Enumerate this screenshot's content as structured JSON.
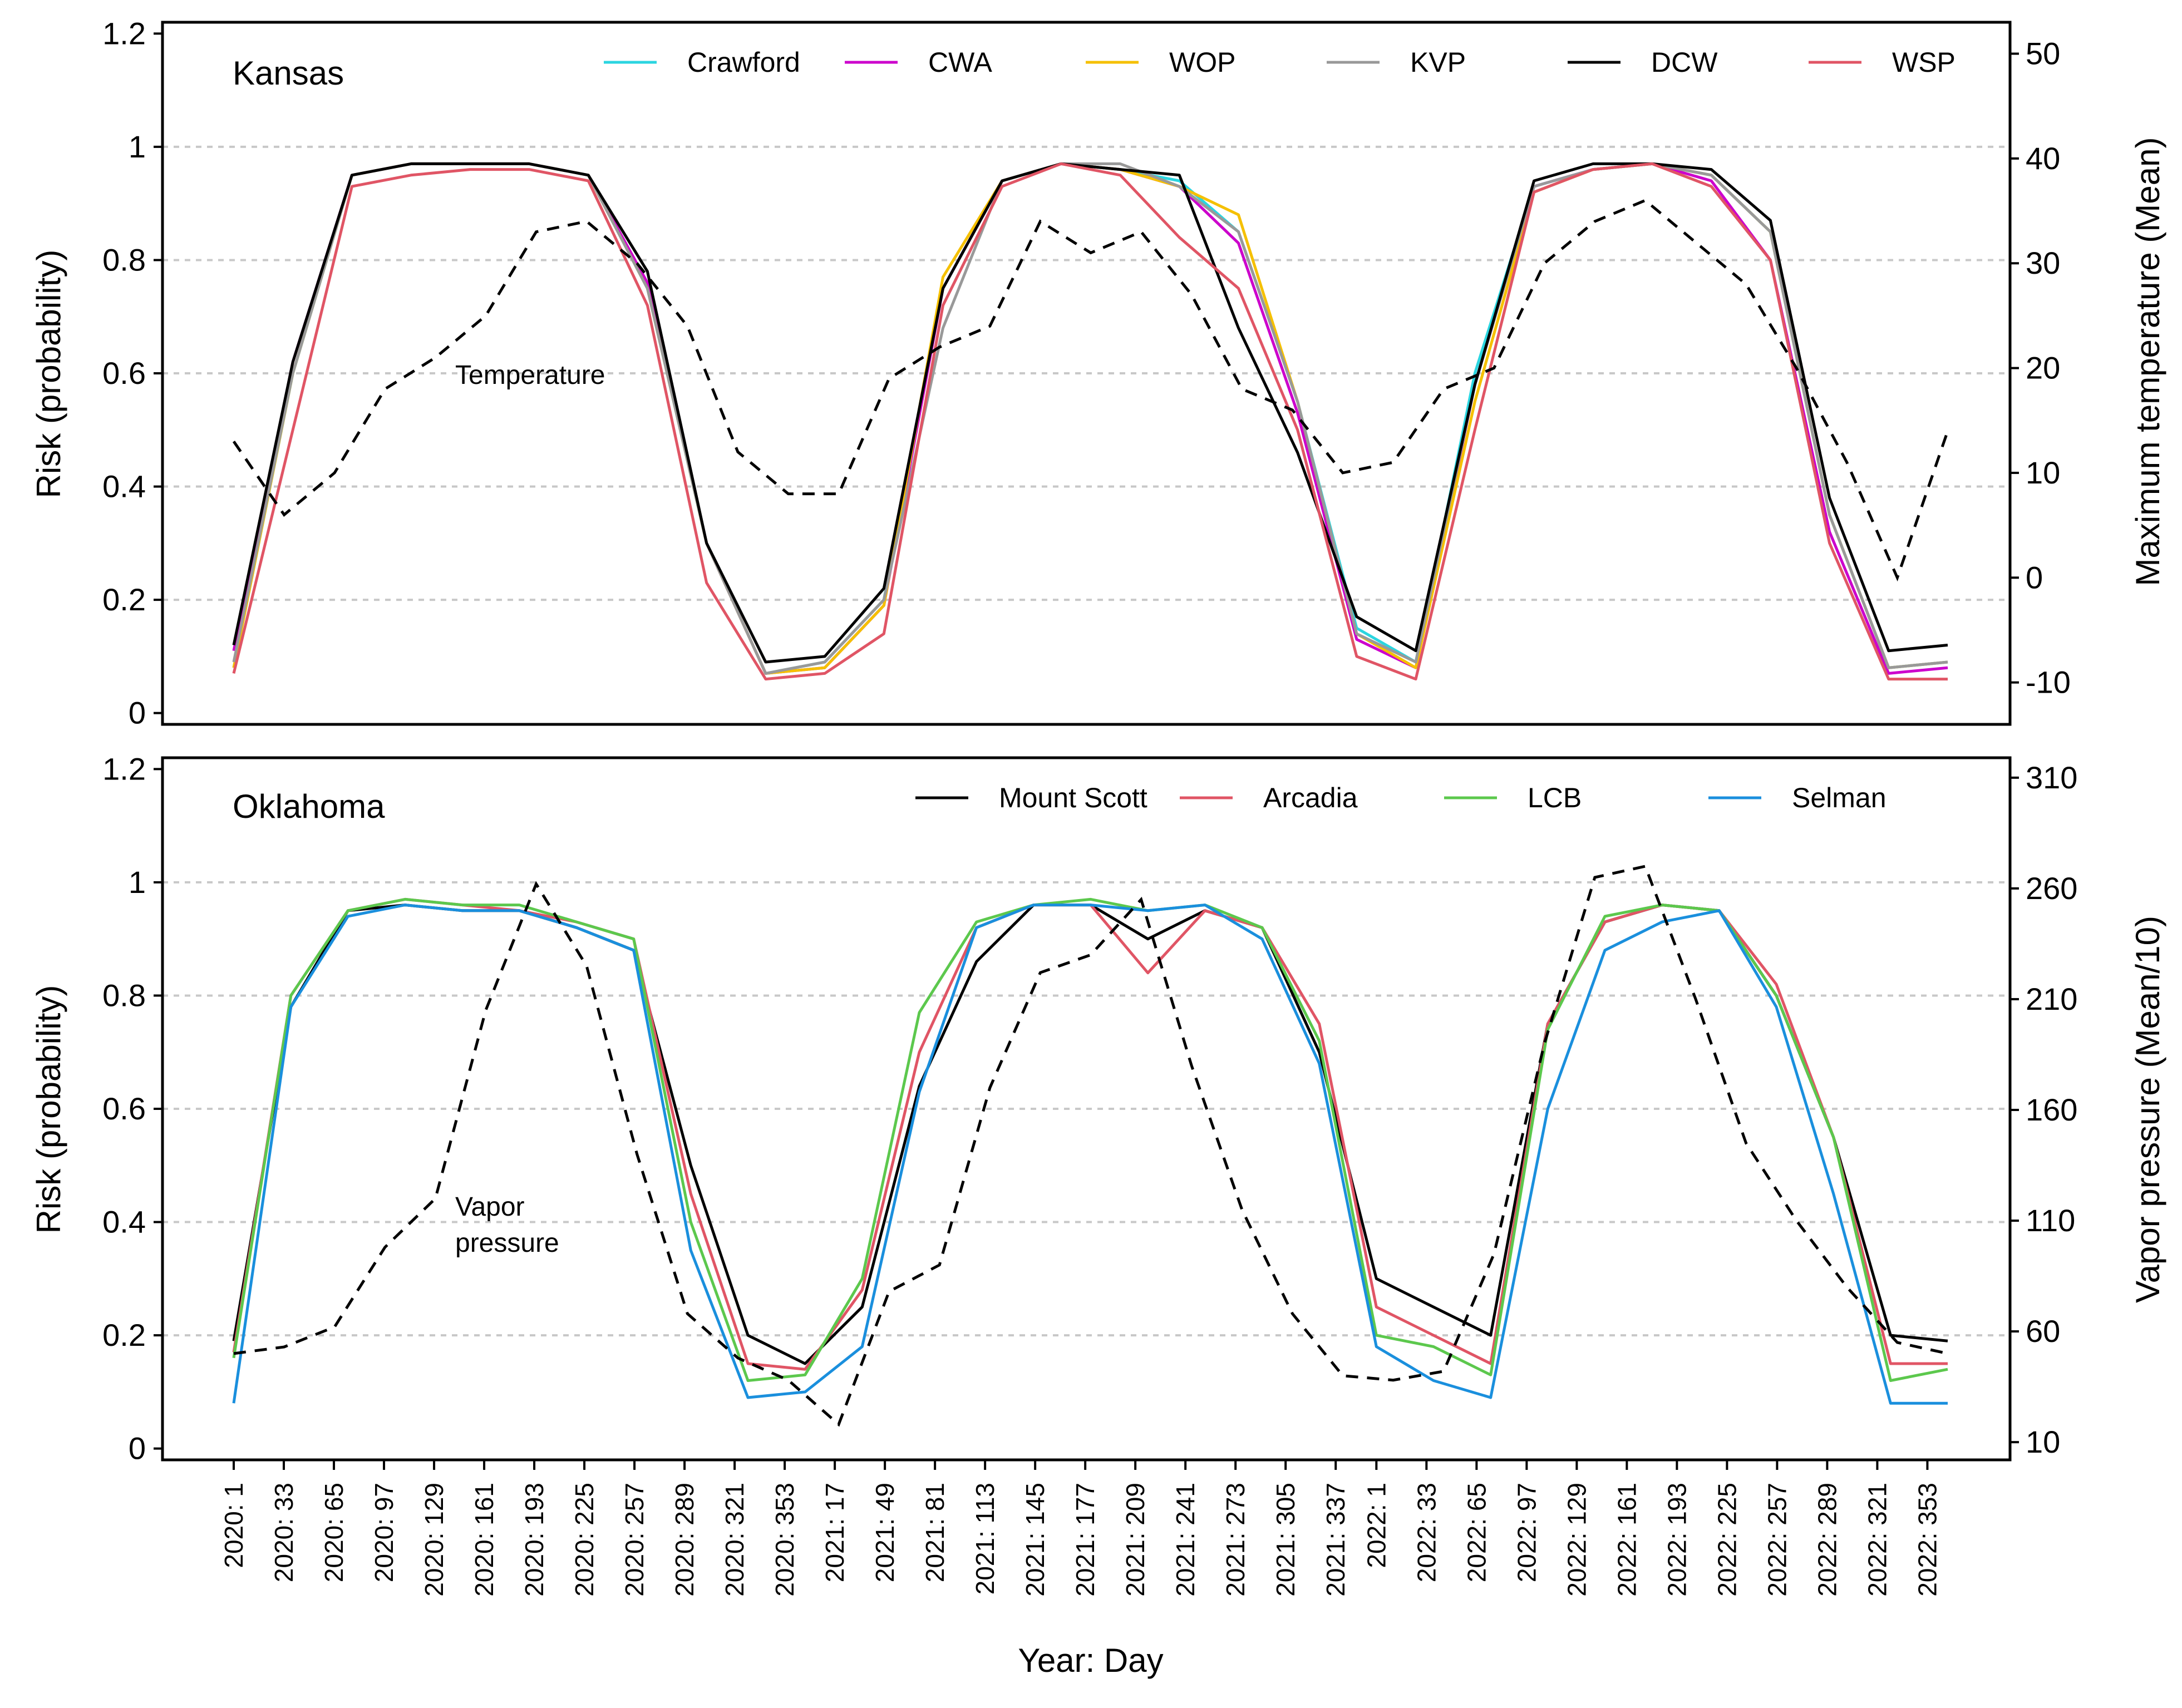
{
  "xlabel": "Year: Day",
  "x_tick_labels": [
    "2020: 1",
    "2020: 33",
    "2020: 65",
    "2020: 97",
    "2020: 129",
    "2020: 161",
    "2020: 193",
    "2020: 225",
    "2020: 257",
    "2020: 289",
    "2020: 321",
    "2020: 353",
    "2021: 17",
    "2021: 49",
    "2021: 81",
    "2021: 113",
    "2021: 145",
    "2021: 177",
    "2021: 209",
    "2021: 241",
    "2021: 273",
    "2021: 305",
    "2021: 337",
    "2022: 1",
    "2022: 33",
    "2022: 65",
    "2022: 97",
    "2022: 129",
    "2022: 161",
    "2022: 193",
    "2022: 225",
    "2022: 257",
    "2022: 289",
    "2022: 321",
    "2022: 353"
  ],
  "chart_data": [
    {
      "type": "line",
      "panel_label": "Kansas",
      "ylabel": "Risk (probability)",
      "ylim": [
        -0.02,
        1.22
      ],
      "yticks": [
        0,
        0.2,
        0.4,
        0.6,
        0.8,
        1,
        1.2
      ],
      "y2label": "Maximum temperature (Mean)",
      "y2lim": [
        -14,
        53
      ],
      "y2ticks": [
        -10,
        0,
        10,
        20,
        30,
        40,
        50
      ],
      "grid": "horizontal dotted",
      "legend_position": "top",
      "annotation": "Temperature",
      "days": [
        1,
        33,
        65,
        97,
        129,
        161,
        193,
        225,
        257,
        289,
        321,
        353,
        385,
        417,
        449,
        481,
        513,
        545,
        577,
        609,
        641,
        673,
        705,
        731,
        763,
        795,
        827,
        859,
        891,
        923,
        955,
        987,
        1019,
        1051,
        1083,
        1096
      ],
      "series": [
        {
          "name": "Crawford",
          "color": "#2BD5E0",
          "values": [
            0.08,
            0.6,
            0.95,
            0.97,
            0.97,
            0.97,
            0.95,
            0.75,
            0.3,
            0.07,
            0.09,
            0.2,
            0.75,
            0.94,
            0.97,
            0.96,
            0.94,
            0.85,
            0.55,
            0.15,
            0.09,
            0.6,
            0.93,
            0.96,
            0.97,
            0.95,
            0.85,
            0.35,
            0.08,
            0.09
          ]
        },
        {
          "name": "CWA",
          "color": "#CC00CC",
          "values": [
            0.11,
            0.62,
            0.95,
            0.97,
            0.97,
            0.97,
            0.95,
            0.76,
            0.3,
            0.07,
            0.08,
            0.19,
            0.75,
            0.94,
            0.97,
            0.96,
            0.93,
            0.83,
            0.53,
            0.13,
            0.08,
            0.58,
            0.93,
            0.96,
            0.97,
            0.94,
            0.8,
            0.32,
            0.07,
            0.08
          ]
        },
        {
          "name": "WOP",
          "color": "#F5C000",
          "values": [
            0.08,
            0.6,
            0.95,
            0.97,
            0.97,
            0.97,
            0.95,
            0.75,
            0.3,
            0.07,
            0.08,
            0.19,
            0.77,
            0.94,
            0.97,
            0.96,
            0.93,
            0.88,
            0.55,
            0.14,
            0.08,
            0.55,
            0.92,
            0.96,
            0.97,
            0.95,
            0.85,
            0.35,
            0.08,
            0.09
          ]
        },
        {
          "name": "KVP",
          "color": "#999999",
          "values": [
            0.09,
            0.6,
            0.95,
            0.97,
            0.97,
            0.97,
            0.95,
            0.75,
            0.3,
            0.07,
            0.09,
            0.2,
            0.68,
            0.94,
            0.97,
            0.97,
            0.93,
            0.85,
            0.55,
            0.14,
            0.09,
            0.58,
            0.93,
            0.96,
            0.97,
            0.95,
            0.85,
            0.35,
            0.08,
            0.09
          ]
        },
        {
          "name": "DCW",
          "color": "#000000",
          "values": [
            0.12,
            0.62,
            0.95,
            0.97,
            0.97,
            0.97,
            0.95,
            0.78,
            0.3,
            0.09,
            0.1,
            0.22,
            0.75,
            0.94,
            0.97,
            0.96,
            0.95,
            0.68,
            0.46,
            0.17,
            0.11,
            0.58,
            0.94,
            0.97,
            0.97,
            0.96,
            0.87,
            0.38,
            0.11,
            0.12
          ]
        },
        {
          "name": "WSP",
          "color": "#E05565",
          "values": [
            0.07,
            0.5,
            0.93,
            0.95,
            0.96,
            0.96,
            0.94,
            0.72,
            0.23,
            0.06,
            0.07,
            0.14,
            0.72,
            0.93,
            0.97,
            0.95,
            0.84,
            0.75,
            0.5,
            0.1,
            0.06,
            0.5,
            0.92,
            0.96,
            0.97,
            0.93,
            0.8,
            0.3,
            0.06,
            0.06
          ]
        }
      ],
      "temperature": [
        13,
        6,
        10,
        18,
        21,
        25,
        33,
        34,
        30,
        24,
        12,
        8,
        8,
        19,
        22,
        24,
        34,
        31,
        33,
        27,
        18,
        16,
        10,
        11,
        18,
        20,
        30,
        34,
        36,
        32,
        28,
        20,
        11,
        0,
        14
      ]
    },
    {
      "type": "line",
      "panel_label": "Oklahoma",
      "ylabel": "Risk (probability)",
      "ylim": [
        -0.02,
        1.22
      ],
      "yticks": [
        0,
        0.2,
        0.4,
        0.6,
        0.8,
        1,
        1.2
      ],
      "y2label": "Vapor pressure (Mean/10)",
      "y2lim": [
        2,
        319
      ],
      "y2ticks": [
        10,
        60,
        110,
        160,
        210,
        260,
        310
      ],
      "grid": "horizontal dotted",
      "legend_position": "top",
      "annotation_lines": [
        "Vapor",
        "pressure"
      ],
      "series": [
        {
          "name": "Mount Scott",
          "color": "#000000",
          "values": [
            0.19,
            0.78,
            0.95,
            0.96,
            0.95,
            0.95,
            0.92,
            0.88,
            0.5,
            0.2,
            0.15,
            0.25,
            0.64,
            0.86,
            0.96,
            0.96,
            0.9,
            0.95,
            0.92,
            0.7,
            0.3,
            0.25,
            0.2,
            0.75,
            0.93,
            0.96,
            0.95,
            0.8,
            0.55,
            0.2,
            0.19
          ]
        },
        {
          "name": "Arcadia",
          "color": "#E05565",
          "values": [
            0.17,
            0.8,
            0.95,
            0.97,
            0.96,
            0.95,
            0.93,
            0.9,
            0.45,
            0.15,
            0.14,
            0.28,
            0.7,
            0.92,
            0.96,
            0.96,
            0.84,
            0.95,
            0.92,
            0.75,
            0.25,
            0.2,
            0.15,
            0.75,
            0.93,
            0.96,
            0.95,
            0.82,
            0.55,
            0.15,
            0.15
          ]
        },
        {
          "name": "LCB",
          "color": "#5CC84D",
          "values": [
            0.16,
            0.8,
            0.95,
            0.97,
            0.96,
            0.96,
            0.93,
            0.9,
            0.4,
            0.12,
            0.13,
            0.3,
            0.77,
            0.93,
            0.96,
            0.97,
            0.95,
            0.96,
            0.92,
            0.72,
            0.2,
            0.18,
            0.13,
            0.74,
            0.94,
            0.96,
            0.95,
            0.8,
            0.55,
            0.12,
            0.14
          ]
        },
        {
          "name": "Selman",
          "color": "#1A8FDD",
          "values": [
            0.08,
            0.78,
            0.94,
            0.96,
            0.95,
            0.95,
            0.92,
            0.88,
            0.35,
            0.09,
            0.1,
            0.18,
            0.63,
            0.92,
            0.96,
            0.96,
            0.95,
            0.96,
            0.9,
            0.68,
            0.18,
            0.12,
            0.09,
            0.6,
            0.88,
            0.93,
            0.95,
            0.78,
            0.45,
            0.08,
            0.08
          ]
        }
      ],
      "vapor_pressure": [
        50,
        53,
        62,
        98,
        120,
        205,
        262,
        225,
        140,
        68,
        48,
        38,
        18,
        78,
        90,
        170,
        222,
        230,
        255,
        180,
        115,
        68,
        40,
        38,
        42,
        95,
        190,
        265,
        270,
        210,
        145,
        110,
        80,
        55,
        50
      ]
    }
  ]
}
